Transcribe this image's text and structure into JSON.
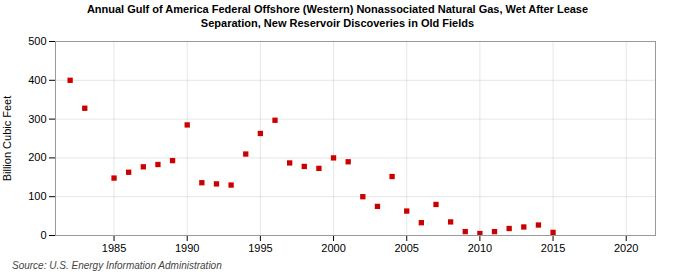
{
  "chart_data": {
    "type": "scatter",
    "title": "Annual Gulf of America Federal Offshore (Western) Nonassociated Natural Gas, Wet After Lease\nSeparation, New Reservoir Discoveries in Old Fields",
    "ylabel": "Billion Cubic Feet",
    "caption": "Source: U.S. Energy Information Administration",
    "x": [
      1982,
      1983,
      1985,
      1986,
      1987,
      1988,
      1989,
      1990,
      1991,
      1992,
      1993,
      1994,
      1995,
      1996,
      1997,
      1998,
      1999,
      2000,
      2001,
      2002,
      2003,
      2004,
      2005,
      2006,
      2007,
      2008,
      2009,
      2010,
      2011,
      2012,
      2013,
      2014,
      2015
    ],
    "values": [
      400,
      328,
      148,
      163,
      177,
      183,
      193,
      285,
      136,
      133,
      130,
      210,
      263,
      297,
      187,
      178,
      173,
      200,
      190,
      100,
      75,
      152,
      63,
      33,
      80,
      35,
      10,
      5,
      10,
      18,
      22,
      27,
      8
    ],
    "color": "#cc0000",
    "marker": "square",
    "xlim": [
      1981,
      2022
    ],
    "ylim": [
      0,
      500
    ],
    "xticks": [
      1985,
      1990,
      1995,
      2000,
      2005,
      2010,
      2015,
      2020
    ],
    "yticks": [
      0,
      100,
      200,
      300,
      400,
      500
    ],
    "grid": true
  }
}
